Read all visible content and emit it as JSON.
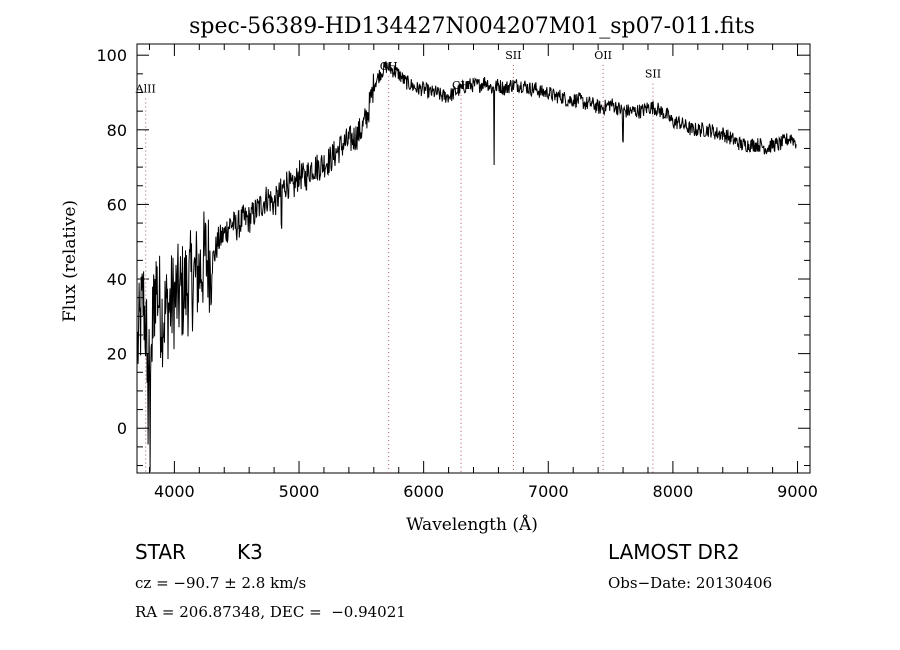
{
  "chart_data": {
    "type": "line",
    "title": "spec-56389-HD134427N004207M01_sp07-011.fits",
    "xlabel": "Wavelength (Å)",
    "ylabel": "Flux (relative)",
    "xlim": [
      3700,
      9100
    ],
    "ylim": [
      -12,
      103
    ],
    "xticks": [
      4000,
      5000,
      6000,
      7000,
      8000,
      9000
    ],
    "yticks": [
      0,
      20,
      40,
      60,
      80,
      100
    ],
    "grid": false,
    "series": [
      {
        "x": [
          3700,
          3750,
          3800,
          3850,
          3900,
          3950,
          4000,
          4050,
          4100,
          4150,
          4200,
          4250,
          4300,
          4350,
          4400,
          4450,
          4500,
          4550,
          4600,
          4650,
          4700,
          4750,
          4800,
          4850,
          4900,
          4950,
          5000,
          5050,
          5100,
          5150,
          5200,
          5250,
          5300,
          5350,
          5400,
          5450,
          5500,
          5550,
          5600,
          5650,
          5700,
          5750,
          5800,
          5850,
          5900,
          5950,
          6000,
          6050,
          6100,
          6150,
          6200,
          6250,
          6300,
          6350,
          6400,
          6450,
          6500,
          6550,
          6600,
          6650,
          6700,
          6750,
          6800,
          6850,
          6900,
          6950,
          7000,
          7050,
          7100,
          7150,
          7200,
          7250,
          7300,
          7350,
          7400,
          7450,
          7500,
          7550,
          7600,
          7650,
          7700,
          7750,
          7800,
          7850,
          7900,
          7950,
          8000,
          8050,
          8100,
          8150,
          8200,
          8250,
          8300,
          8350,
          8400,
          8450,
          8500,
          8550,
          8600,
          8650,
          8700,
          8750,
          8800,
          8850,
          8900,
          8950,
          9000
        ],
        "y": [
          20,
          35,
          15,
          40,
          30,
          32,
          35,
          36,
          38,
          40,
          42,
          46,
          44,
          50,
          52,
          55,
          54,
          56,
          56,
          58,
          60,
          62,
          60,
          63,
          66,
          64,
          68,
          67,
          70,
          70,
          71,
          72,
          74,
          76,
          77,
          78,
          80,
          84,
          92,
          95,
          97,
          96,
          95,
          93,
          92,
          91,
          91,
          90,
          90,
          89,
          89,
          90,
          91,
          92,
          92,
          92,
          93,
          91,
          92,
          91,
          92,
          92,
          92,
          91,
          91,
          90,
          90,
          89,
          89,
          88,
          88,
          88,
          87,
          87,
          86,
          86,
          87,
          86,
          85,
          85,
          85,
          85,
          86,
          86,
          85,
          84,
          82,
          82,
          81,
          80,
          80,
          80,
          80,
          79,
          79,
          78,
          77,
          76,
          76,
          76,
          76,
          75,
          76,
          76,
          77,
          78,
          76
        ]
      }
    ],
    "line_markers": [
      {
        "label": "AlII",
        "x": 3770,
        "label_y": 90
      },
      {
        "label": "CH",
        "x": 5720,
        "label_y": 96
      },
      {
        "label": "CH",
        "x": 6300,
        "label_y": 91
      },
      {
        "label": "SII",
        "x": 6720,
        "label_y": 99
      },
      {
        "label": "OII",
        "x": 7440,
        "label_y": 99
      },
      {
        "label": "SII",
        "x": 7840,
        "label_y": 94
      }
    ]
  },
  "footer": {
    "object_type": "STAR",
    "subclass": "K3",
    "survey": "LAMOST DR2",
    "velocity": "cz = −90.7 ± 2.8 km/s",
    "obs_date": "Obs−Date: 20130406",
    "coords": "RA = 206.87348, DEC =  −0.94021"
  }
}
